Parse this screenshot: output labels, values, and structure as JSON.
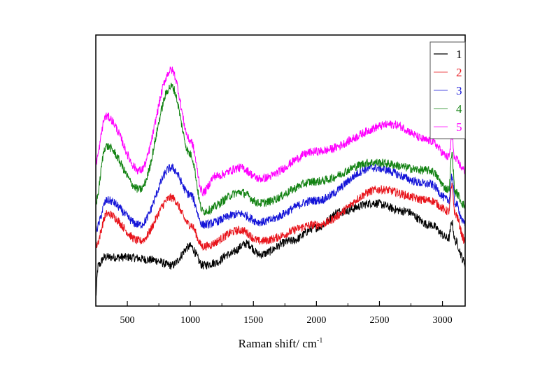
{
  "chart_data": {
    "type": "line",
    "title": "",
    "xlabel": "Raman shift/ cm",
    "xlabel_superscript": "-1",
    "ylabel": "",
    "xlim": [
      250,
      3180
    ],
    "ylim": [
      0,
      100
    ],
    "xticks": [
      500,
      1000,
      1500,
      2000,
      2500,
      3000
    ],
    "xtick_labels": [
      "500",
      "1000",
      "1500",
      "2000",
      "2500",
      "3000"
    ],
    "y_ticks_shown": false,
    "grid": false,
    "legend_position": "top-right",
    "noise_amplitude": 1.6,
    "series": [
      {
        "name": "1",
        "color": "#000000",
        "x": [
          245,
          270,
          320,
          500,
          700,
          850,
          1000,
          1100,
          1200,
          1300,
          1450,
          1550,
          1800,
          2000,
          2200,
          2450,
          2700,
          2900,
          3050,
          3075,
          3100,
          3180
        ],
        "y": [
          2,
          15,
          18,
          18,
          17,
          15,
          22,
          15,
          16,
          19,
          23,
          19,
          24,
          29,
          35,
          38,
          35,
          30,
          25,
          31,
          24,
          16
        ]
      },
      {
        "name": "2",
        "color": "#e8141b",
        "x": [
          245,
          340,
          600,
          850,
          1000,
          1100,
          1400,
          1550,
          2000,
          2500,
          2900,
          3050,
          3075,
          3100,
          3180
        ],
        "y": [
          22,
          34,
          24,
          40,
          30,
          22,
          28,
          24,
          30,
          43,
          39,
          35,
          44,
          34,
          24
        ]
      },
      {
        "name": "3",
        "color": "#1414d8",
        "x": [
          245,
          340,
          600,
          850,
          1000,
          1100,
          1400,
          1550,
          2000,
          2450,
          2900,
          3050,
          3075,
          3100,
          3180
        ],
        "y": [
          28,
          39,
          30,
          51,
          41,
          30,
          34,
          31,
          39,
          51,
          45,
          39,
          48,
          38,
          30
        ]
      },
      {
        "name": "4",
        "color": "#128212",
        "x": [
          245,
          330,
          600,
          850,
          1000,
          1100,
          1400,
          1550,
          2000,
          2450,
          2900,
          3050,
          3075,
          3100,
          3180
        ],
        "y": [
          38,
          59,
          43,
          81,
          56,
          35,
          42,
          38,
          46,
          53,
          50,
          43,
          56,
          42,
          37
        ]
      },
      {
        "name": "5",
        "color": "#ff00ff",
        "x": [
          245,
          330,
          600,
          850,
          1000,
          1100,
          1200,
          1400,
          1550,
          2000,
          2600,
          2900,
          3050,
          3075,
          3100,
          3180
        ],
        "y": [
          53,
          70,
          50,
          87,
          61,
          42,
          48,
          51,
          47,
          57,
          67,
          61,
          55,
          62,
          54,
          50
        ]
      }
    ]
  }
}
